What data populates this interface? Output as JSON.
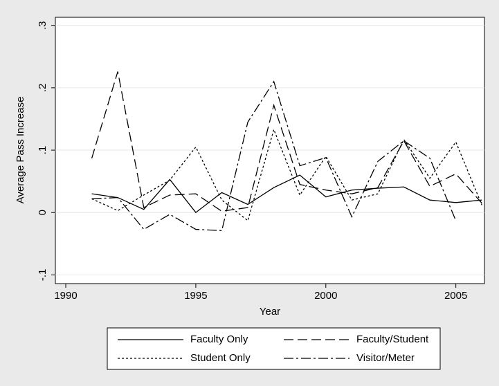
{
  "chart_data": {
    "type": "line",
    "y_label": "Average Pass Increase",
    "x_label": "Year",
    "x": [
      1991,
      1992,
      1993,
      1994,
      1995,
      1996,
      1997,
      1998,
      1999,
      2000,
      2001,
      2002,
      2003,
      2004,
      2005,
      2006
    ],
    "series": [
      {
        "name": "Faculty Only",
        "color": "#000000",
        "dash": "none",
        "values": [
          0.03,
          0.024,
          0.005,
          0.053,
          0.0,
          0.032,
          0.013,
          0.04,
          0.06,
          0.025,
          0.036,
          0.039,
          0.041,
          0.02,
          0.016,
          0.02
        ]
      },
      {
        "name": "Faculty/Student",
        "color": "#000000",
        "dash": "14 6",
        "values": [
          0.087,
          0.226,
          0.008,
          0.028,
          0.03,
          0.002,
          0.008,
          0.172,
          0.045,
          0.036,
          0.03,
          0.04,
          0.115,
          0.042,
          0.062,
          0.015
        ]
      },
      {
        "name": "Student Only",
        "color": "#000000",
        "dash": "3 3",
        "values": [
          0.022,
          0.003,
          0.028,
          0.052,
          0.105,
          0.02,
          -0.013,
          0.133,
          0.028,
          0.09,
          0.02,
          0.03,
          0.117,
          0.055,
          0.113,
          0.012
        ]
      },
      {
        "name": "Visitor/Meter",
        "color": "#000000",
        "dash": "14 4 3 4",
        "values": [
          0.022,
          0.024,
          -0.027,
          -0.003,
          -0.027,
          -0.029,
          0.145,
          0.21,
          0.075,
          0.088,
          -0.007,
          0.082,
          0.115,
          0.087,
          -0.013,
          null
        ]
      }
    ],
    "xlim": [
      1989.6,
      2006.1
    ],
    "xticks": [
      1990,
      1995,
      2000,
      2005
    ],
    "ylim": [
      -0.114,
      0.313
    ],
    "yticks": [
      {
        "value": -0.1,
        "label": "-.1"
      },
      {
        "value": 0,
        "label": "0"
      },
      {
        "value": 0.1,
        "label": ".1"
      },
      {
        "value": 0.2,
        "label": ".2"
      },
      {
        "value": 0.3,
        "label": ".3"
      }
    ],
    "grid": true
  }
}
